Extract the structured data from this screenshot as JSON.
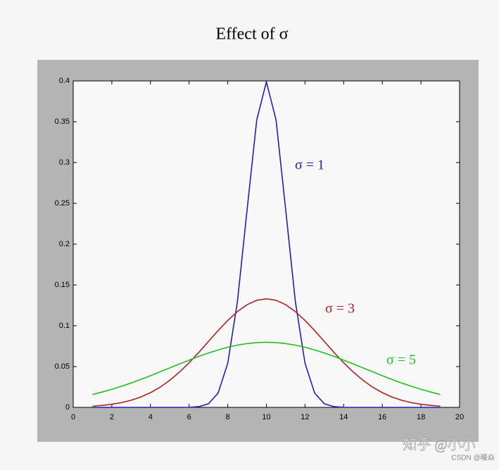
{
  "chart_data": {
    "type": "line",
    "title": "Effect of σ",
    "x": [
      1,
      1.5,
      2,
      2.5,
      3,
      3.5,
      4,
      4.5,
      5,
      5.5,
      6,
      6.5,
      7,
      7.5,
      8,
      8.5,
      9,
      9.5,
      10,
      10.5,
      11,
      11.5,
      12,
      12.5,
      13,
      13.5,
      14,
      14.5,
      15,
      15.5,
      16,
      16.5,
      17,
      17.5,
      18,
      18.5,
      19
    ],
    "series": [
      {
        "name": "σ = 1",
        "color": "#2020b0",
        "values": [
          0,
          0,
          0,
          0,
          0,
          0,
          0,
          0,
          0,
          0,
          0.0001,
          0.0009,
          0.0044,
          0.0175,
          0.054,
          0.1295,
          0.242,
          0.3521,
          0.3989,
          0.3521,
          0.242,
          0.1295,
          0.054,
          0.0175,
          0.0044,
          0.0009,
          0.0001,
          0,
          0,
          0,
          0,
          0,
          0,
          0,
          0,
          0,
          0
        ]
      },
      {
        "name": "σ = 3",
        "color": "#b02020",
        "values": [
          0.0015,
          0.0024,
          0.0038,
          0.0058,
          0.0087,
          0.0127,
          0.018,
          0.0248,
          0.0332,
          0.0432,
          0.0547,
          0.0673,
          0.0807,
          0.094,
          0.1065,
          0.1174,
          0.1258,
          0.1312,
          0.133,
          0.1312,
          0.1258,
          0.1174,
          0.1065,
          0.094,
          0.0807,
          0.0673,
          0.0547,
          0.0432,
          0.0332,
          0.0248,
          0.018,
          0.0127,
          0.0087,
          0.0058,
          0.0038,
          0.0024,
          0.0015
        ]
      },
      {
        "name": "σ = 5",
        "color": "#20c020",
        "values": [
          0.0158,
          0.0188,
          0.0222,
          0.0259,
          0.0299,
          0.0343,
          0.0388,
          0.0436,
          0.0484,
          0.0532,
          0.0579,
          0.0625,
          0.0666,
          0.0704,
          0.0737,
          0.0763,
          0.0782,
          0.0794,
          0.0798,
          0.0794,
          0.0782,
          0.0763,
          0.0737,
          0.0704,
          0.0666,
          0.0625,
          0.0579,
          0.0532,
          0.0484,
          0.0436,
          0.0388,
          0.0343,
          0.0299,
          0.0259,
          0.0222,
          0.0188,
          0.0158
        ]
      }
    ],
    "xlim": [
      0,
      20
    ],
    "xticks": [
      0,
      2,
      4,
      6,
      8,
      10,
      12,
      14,
      16,
      18,
      20
    ],
    "ylim": [
      0,
      0.4
    ],
    "yticks": [
      0,
      0.05,
      0.1,
      0.15,
      0.2,
      0.25,
      0.3,
      0.35,
      0.4
    ],
    "watermark": [
      "知乎 @小小",
      "CSDN @暖焱"
    ]
  }
}
